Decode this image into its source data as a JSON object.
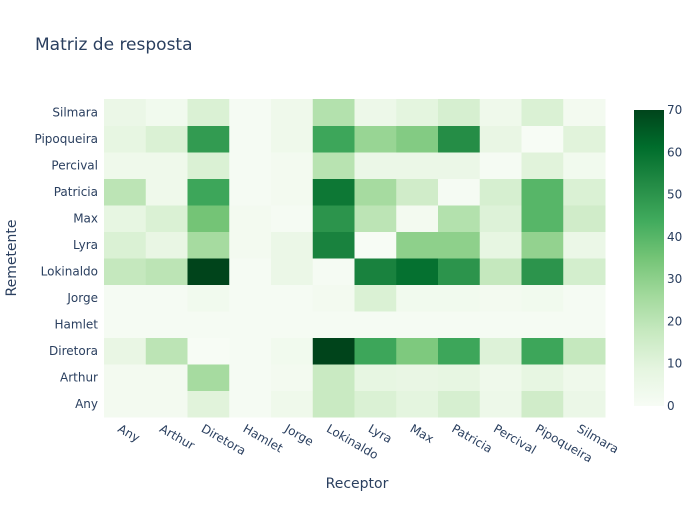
{
  "chart_data": {
    "type": "heatmap",
    "title": "Matriz de resposta",
    "xlabel": "Receptor",
    "ylabel": "Remetente",
    "x": [
      "Any",
      "Arthur",
      "Diretora",
      "Hamlet",
      "Jorge",
      "Lokinaldo",
      "Lyra",
      "Max",
      "Patricia",
      "Percival",
      "Pipoqueira",
      "Silmara"
    ],
    "y": [
      "Any",
      "Arthur",
      "Diretora",
      "Hamlet",
      "Jorge",
      "Lokinaldo",
      "Lyra",
      "Max",
      "Patricia",
      "Percival",
      "Pipoqueira",
      "Silmara"
    ],
    "z": [
      [
        2,
        2,
        10,
        1,
        4,
        17,
        12,
        9,
        13,
        5,
        15,
        6
      ],
      [
        2,
        2,
        25,
        1,
        2,
        17,
        8,
        7,
        8,
        4,
        8,
        4
      ],
      [
        7,
        20,
        0,
        1,
        3,
        70,
        45,
        33,
        45,
        11,
        45,
        18
      ],
      [
        1,
        1,
        1,
        1,
        1,
        1,
        1,
        1,
        1,
        1,
        1,
        1
      ],
      [
        1,
        1,
        3,
        1,
        1,
        2,
        12,
        3,
        3,
        2,
        3,
        1
      ],
      [
        18,
        20,
        71,
        1,
        6,
        1,
        55,
        60,
        50,
        18,
        50,
        14
      ],
      [
        12,
        7,
        25,
        2,
        6,
        55,
        0,
        30,
        30,
        8,
        29,
        6
      ],
      [
        8,
        12,
        35,
        2,
        1,
        50,
        20,
        2,
        22,
        11,
        40,
        15
      ],
      [
        20,
        4,
        45,
        1,
        2,
        58,
        25,
        15,
        1,
        13,
        40,
        12
      ],
      [
        4,
        4,
        12,
        1,
        2,
        21,
        6,
        6,
        6,
        1,
        10,
        3
      ],
      [
        8,
        12,
        48,
        1,
        4,
        45,
        28,
        32,
        52,
        7,
        0,
        10
      ],
      [
        6,
        3,
        12,
        1,
        4,
        22,
        5,
        9,
        13,
        4,
        12,
        2
      ]
    ],
    "zrange": [
      0,
      70
    ],
    "colorscale": [
      "#f7fcf5",
      "#e5f5e0",
      "#c7e9c0",
      "#a1d99b",
      "#74c476",
      "#41ab5d",
      "#238b45",
      "#006d2c",
      "#00441b"
    ],
    "colorbar_ticks": [
      0,
      10,
      20,
      30,
      40,
      50,
      60,
      70
    ]
  }
}
